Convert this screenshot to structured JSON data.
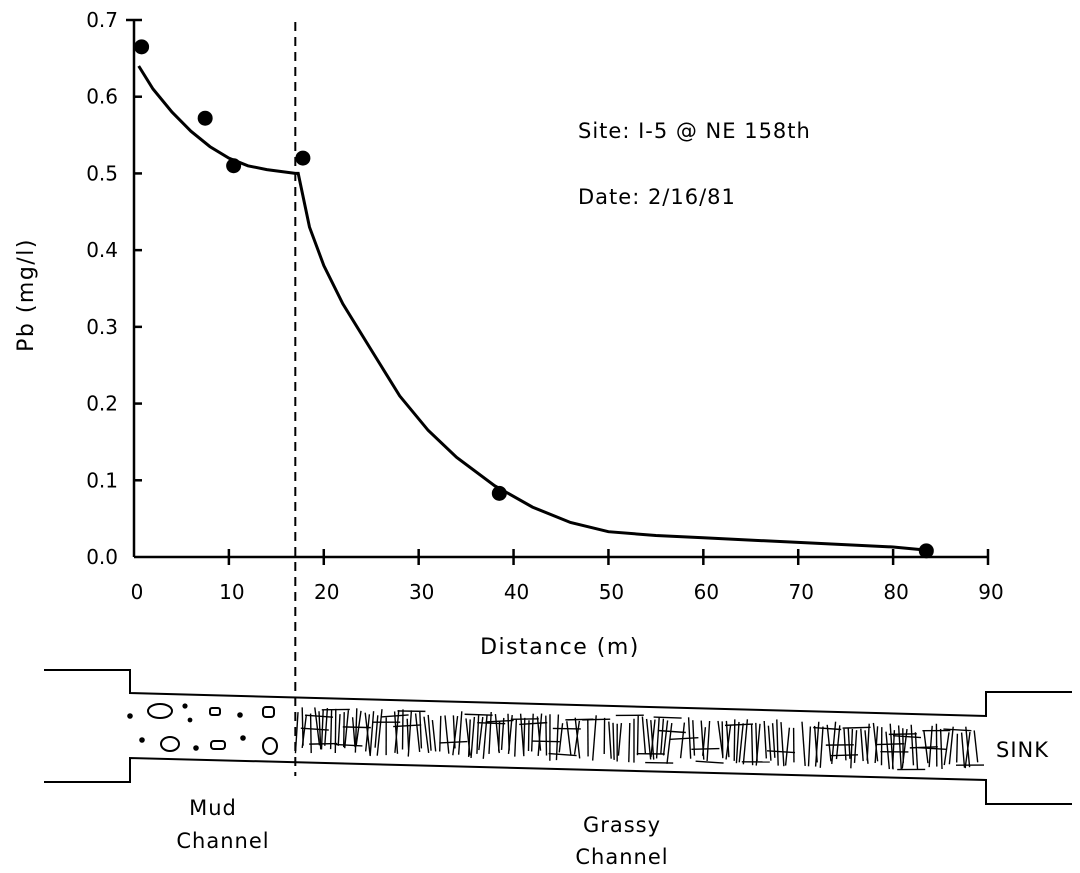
{
  "chart_data": {
    "type": "scatter",
    "xlabel": "Distance (m)",
    "ylabel": "Pb (mg/l)",
    "xlim": [
      0,
      90
    ],
    "ylim": [
      0.0,
      0.7
    ],
    "x_ticks": [
      "0",
      "10",
      "20",
      "30",
      "40",
      "50",
      "60",
      "70",
      "80",
      "90"
    ],
    "y_ticks": [
      "0.0",
      "0.1",
      "0.2",
      "0.3",
      "0.4",
      "0.5",
      "0.6",
      "0.7"
    ],
    "grid": false,
    "points": [
      {
        "x": 0.8,
        "y": 0.665
      },
      {
        "x": 7.5,
        "y": 0.572
      },
      {
        "x": 10.5,
        "y": 0.51
      },
      {
        "x": 17.8,
        "y": 0.52
      },
      {
        "x": 38.5,
        "y": 0.083
      },
      {
        "x": 83.5,
        "y": 0.008
      }
    ],
    "fit_curve": [
      [
        0.5,
        0.64
      ],
      [
        2,
        0.61
      ],
      [
        4,
        0.58
      ],
      [
        6,
        0.555
      ],
      [
        8,
        0.535
      ],
      [
        10,
        0.52
      ],
      [
        12,
        0.51
      ],
      [
        14,
        0.505
      ],
      [
        17,
        0.5
      ],
      [
        17.3,
        0.5
      ],
      [
        18.5,
        0.43
      ],
      [
        20,
        0.38
      ],
      [
        22,
        0.33
      ],
      [
        25,
        0.27
      ],
      [
        28,
        0.21
      ],
      [
        31,
        0.165
      ],
      [
        34,
        0.13
      ],
      [
        38,
        0.093
      ],
      [
        42,
        0.065
      ],
      [
        46,
        0.045
      ],
      [
        50,
        0.033
      ],
      [
        55,
        0.028
      ],
      [
        60,
        0.025
      ],
      [
        70,
        0.019
      ],
      [
        80,
        0.013
      ],
      [
        83.5,
        0.009
      ]
    ],
    "boundary_x": 17,
    "annotations": [
      "Site: I-5 @ NE 158th",
      "Date: 2/16/81"
    ],
    "channel_labels": {
      "mud": [
        "Mud",
        "Channel"
      ],
      "grassy": [
        "Grassy",
        "Channel"
      ],
      "sink": "SINK"
    }
  }
}
